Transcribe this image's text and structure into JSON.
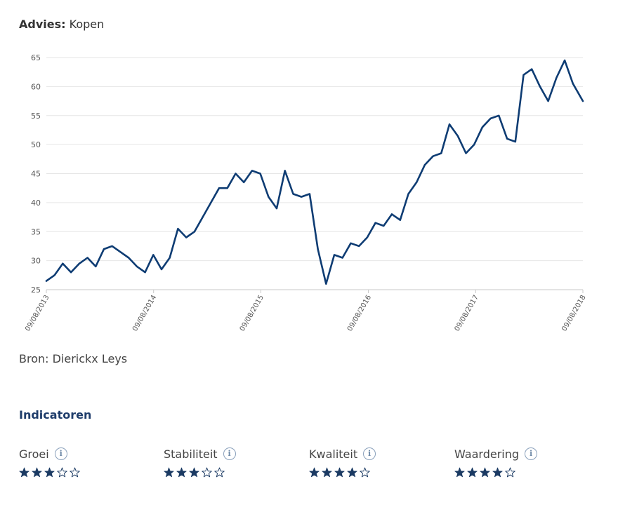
{
  "advies": {
    "label": "Advies:",
    "value": "Kopen"
  },
  "source": "Bron: Dierickx Leys",
  "indicators_title": "Indicatoren",
  "indicators": [
    {
      "label": "Groei",
      "rating": 3,
      "max": 5
    },
    {
      "label": "Stabiliteit",
      "rating": 3,
      "max": 5
    },
    {
      "label": "Kwaliteit",
      "rating": 4,
      "max": 5
    },
    {
      "label": "Waardering",
      "rating": 4,
      "max": 5
    }
  ],
  "colors": {
    "line": "#0e3c73",
    "star": "#1b3a63",
    "accent": "#1f3d6b"
  },
  "chart_data": {
    "type": "line",
    "title": "",
    "xlabel": "",
    "ylabel": "",
    "ylim": [
      25,
      65
    ],
    "yticks": [
      25,
      30,
      35,
      40,
      45,
      50,
      55,
      60,
      65
    ],
    "xlim": [
      "09/08/2013",
      "09/08/2018"
    ],
    "xticks": [
      "09/08/2013",
      "09/08/2014",
      "09/08/2015",
      "09/08/2016",
      "09/08/2017",
      "09/08/2018"
    ],
    "grid": true,
    "series": [
      {
        "name": "",
        "x": [
          "2013-08-09",
          "2013-09-06",
          "2013-10-04",
          "2013-11-01",
          "2013-11-29",
          "2013-12-27",
          "2014-01-24",
          "2014-02-21",
          "2014-03-21",
          "2014-04-18",
          "2014-05-16",
          "2014-06-13",
          "2014-07-11",
          "2014-08-08",
          "2014-09-05",
          "2014-10-03",
          "2014-10-31",
          "2014-11-28",
          "2014-12-26",
          "2015-01-23",
          "2015-02-20",
          "2015-03-20",
          "2015-04-17",
          "2015-05-15",
          "2015-06-12",
          "2015-07-10",
          "2015-08-07",
          "2015-09-04",
          "2015-10-02",
          "2015-10-30",
          "2015-11-27",
          "2015-12-25",
          "2016-01-22",
          "2016-02-19",
          "2016-03-18",
          "2016-04-15",
          "2016-05-13",
          "2016-06-10",
          "2016-07-08",
          "2016-08-05",
          "2016-09-02",
          "2016-09-30",
          "2016-10-28",
          "2016-11-25",
          "2016-12-23",
          "2017-01-20",
          "2017-02-17",
          "2017-03-17",
          "2017-04-14",
          "2017-05-12",
          "2017-06-09",
          "2017-07-07",
          "2017-08-04",
          "2017-09-01",
          "2017-09-29",
          "2017-10-27",
          "2017-11-24",
          "2017-12-22",
          "2018-01-19",
          "2018-02-16",
          "2018-03-16",
          "2018-04-13",
          "2018-05-11",
          "2018-06-08",
          "2018-07-06",
          "2018-08-09"
        ],
        "values": [
          26.5,
          27.5,
          29.5,
          28.0,
          29.5,
          30.5,
          29.0,
          32.0,
          32.5,
          31.5,
          30.5,
          29.0,
          28.0,
          31.0,
          28.5,
          30.5,
          35.5,
          34.0,
          35.0,
          37.5,
          40.0,
          42.5,
          42.5,
          45.0,
          43.5,
          45.5,
          45.0,
          41.0,
          39.0,
          45.5,
          41.5,
          41.0,
          41.5,
          32.0,
          26.0,
          31.0,
          30.5,
          33.0,
          32.5,
          34.0,
          36.5,
          36.0,
          38.0,
          37.0,
          41.5,
          43.5,
          46.5,
          48.0,
          48.5,
          53.5,
          51.5,
          48.5,
          50.0,
          53.0,
          54.5,
          55.0,
          51.0,
          50.5,
          62.0,
          63.0,
          60.0,
          57.5,
          61.5,
          64.5,
          60.5,
          57.5
        ]
      }
    ]
  }
}
